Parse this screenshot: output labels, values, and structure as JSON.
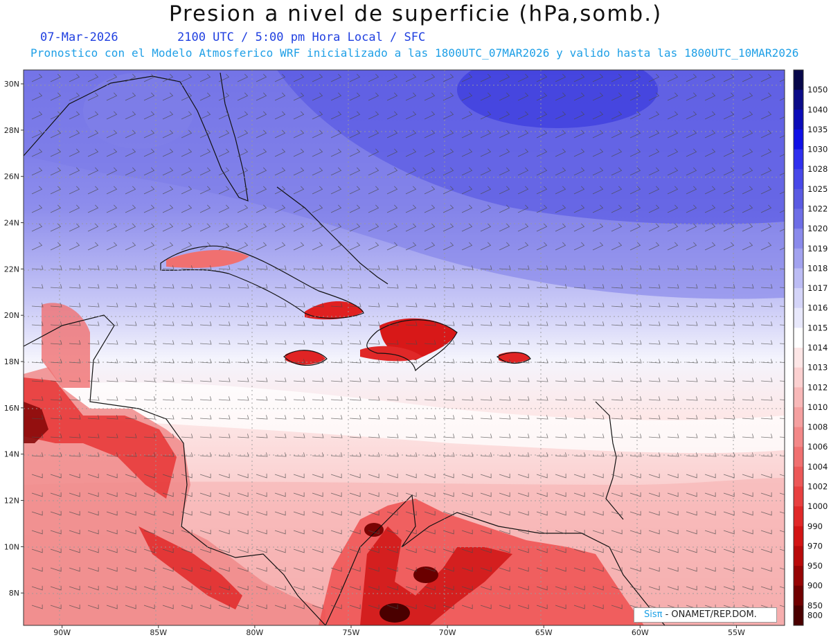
{
  "header": {
    "title": "Presion a nivel de superficie (hPa,somb.)",
    "date": "07-Mar-2026",
    "time_info": "2100 UTC / 5:00 pm Hora Local / SFC",
    "forecast_info": "Pronostico con el Modelo Atmosferico WRF inicializado a las 1800UTC_07MAR2026 y valido hasta las  1800UTC_10MAR2026"
  },
  "map": {
    "lat_labels": [
      "30N",
      "28N",
      "26N",
      "24N",
      "22N",
      "20N",
      "18N",
      "16N",
      "14N",
      "12N",
      "10N",
      "8N"
    ],
    "lon_labels": [
      "90W",
      "85W",
      "80W",
      "75W",
      "70W",
      "65W",
      "60W",
      "55W"
    ],
    "lat_range": [
      6.6,
      30.6
    ],
    "lon_range": [
      -92,
      -52.5
    ]
  },
  "colorbar": {
    "levels": [
      "1050",
      "1040",
      "1035",
      "1030",
      "1028",
      "1025",
      "1022",
      "1020",
      "1019",
      "1018",
      "1017",
      "1016",
      "1015",
      "1014",
      "1013",
      "1012",
      "1010",
      "1008",
      "1006",
      "1004",
      "1002",
      "1000",
      "990",
      "970",
      "950",
      "900",
      "850",
      "800"
    ],
    "colors": [
      "#08084a",
      "#0c0c88",
      "#0c0cb8",
      "#1010e6",
      "#2f2fee",
      "#4848e8",
      "#5a5ae2",
      "#6e6ee6",
      "#8a8aeb",
      "#a2a2ef",
      "#bcbcf4",
      "#d4d4f8",
      "#e8e8fb",
      "#ffffff",
      "#fde6e6",
      "#fbd0d0",
      "#f8b8b8",
      "#f5a0a0",
      "#f38888",
      "#f07070",
      "#ec5858",
      "#e84040",
      "#e02828",
      "#d21414",
      "#b80a0a",
      "#960404",
      "#700000",
      "#4a0000"
    ]
  },
  "credit": {
    "brand": "Sisπ",
    "text": " - ONAMET/REP.DOM."
  }
}
